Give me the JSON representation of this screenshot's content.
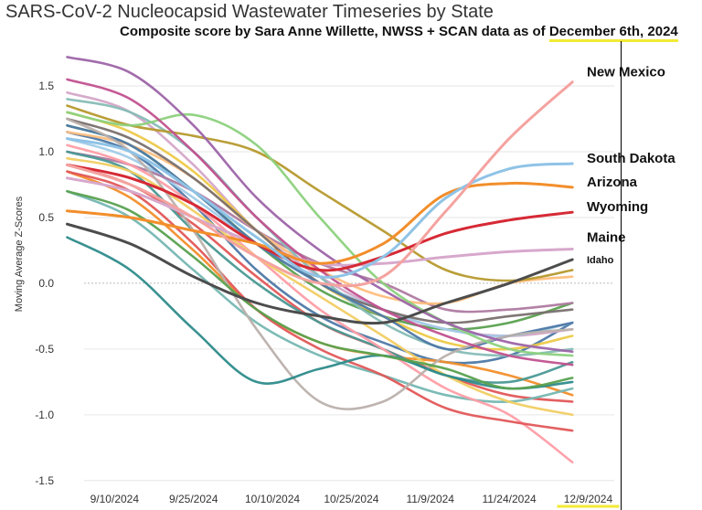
{
  "title": "SARS-CoV-2 Nucleocapsid Wastewater Timeseries by State",
  "subtitle_prefix": "Composite score by  Sara Anne Willette, NWSS + SCAN data as of ",
  "subtitle_date": "December 6th, 2024",
  "colors": {
    "highlight": "#f2ea36",
    "grid": "#e6e6e6"
  },
  "chart_data": {
    "type": "line",
    "ylabel": "Moving Average Z-Scores",
    "ylim": [
      -1.55,
      1.82
    ],
    "xlim": [
      "2024-08-30",
      "2024-12-15"
    ],
    "yticks": [
      {
        "value": 1.5,
        "label": "1.5"
      },
      {
        "value": 1.0,
        "label": "1.0"
      },
      {
        "value": 0.5,
        "label": "0.5"
      },
      {
        "value": 0.0,
        "label": "0.0"
      },
      {
        "value": -0.5,
        "label": "-0.5"
      },
      {
        "value": -1.0,
        "label": "-1.0"
      },
      {
        "value": -1.5,
        "label": "-1.5"
      }
    ],
    "xticks": [
      {
        "date": "2024-09-10",
        "label": "9/10/2024"
      },
      {
        "date": "2024-09-25",
        "label": "9/25/2024"
      },
      {
        "date": "2024-10-10",
        "label": "10/10/2024"
      },
      {
        "date": "2024-10-25",
        "label": "10/25/2024"
      },
      {
        "date": "2024-11-09",
        "label": "11/9/2024"
      },
      {
        "date": "2024-11-24",
        "label": "11/24/2024"
      },
      {
        "date": "2024-12-09",
        "label": "12/9/2024"
      }
    ],
    "x": [
      "2024-09-01",
      "2024-09-13",
      "2024-09-25",
      "2024-10-07",
      "2024-10-19",
      "2024-10-31",
      "2024-11-12",
      "2024-11-24",
      "2024-12-06"
    ],
    "series": [
      {
        "name": "New Mexico",
        "color": "#f4a3a0",
        "values": [
          0.9,
          0.75,
          0.5,
          0.2,
          0.0,
          0.05,
          0.55,
          1.1,
          1.53
        ]
      },
      {
        "name": "South Dakota",
        "color": "#8fc3e6",
        "values": [
          1.1,
          1.0,
          0.7,
          0.35,
          0.05,
          0.2,
          0.65,
          0.87,
          0.91
        ]
      },
      {
        "name": "Arizona",
        "color": "#f28e2b",
        "values": [
          0.55,
          0.5,
          0.4,
          0.3,
          0.15,
          0.3,
          0.68,
          0.76,
          0.73
        ]
      },
      {
        "name": "Wyoming",
        "color": "#d62a35",
        "values": [
          0.9,
          0.8,
          0.6,
          0.3,
          0.1,
          0.2,
          0.38,
          0.48,
          0.54
        ]
      },
      {
        "name": "Maine",
        "color": "#d7a8cc",
        "values": [
          0.8,
          0.7,
          0.5,
          0.3,
          0.15,
          0.15,
          0.2,
          0.24,
          0.26
        ]
      },
      {
        "name": "Idaho",
        "color": "#4c4c4c",
        "values": [
          0.45,
          0.3,
          0.05,
          -0.15,
          -0.25,
          -0.3,
          -0.15,
          0.0,
          0.18
        ]
      },
      {
        "name": "",
        "color": "#9d64a8",
        "values": [
          1.72,
          1.6,
          1.2,
          0.65,
          0.25,
          -0.05,
          -0.3,
          -0.45,
          -0.52
        ]
      },
      {
        "name": "",
        "color": "#c2518f",
        "values": [
          1.55,
          1.4,
          1.0,
          0.5,
          0.1,
          -0.2,
          -0.4,
          -0.55,
          -0.62
        ]
      },
      {
        "name": "",
        "color": "#8cd17d",
        "values": [
          1.3,
          1.2,
          1.28,
          1.05,
          0.5,
          0.0,
          -0.3,
          -0.5,
          -0.55
        ]
      },
      {
        "name": "",
        "color": "#b6992d",
        "values": [
          1.35,
          1.2,
          1.12,
          1.0,
          0.7,
          0.4,
          0.1,
          0.02,
          0.1
        ]
      },
      {
        "name": "",
        "color": "#59a14f",
        "values": [
          0.7,
          0.55,
          0.2,
          -0.2,
          -0.45,
          -0.55,
          -0.65,
          -0.8,
          -0.72
        ]
      },
      {
        "name": "",
        "color": "#2e8b8b",
        "values": [
          0.35,
          0.1,
          -0.35,
          -0.75,
          -0.65,
          -0.55,
          -0.7,
          -0.8,
          -0.75
        ]
      },
      {
        "name": "",
        "color": "#bab0ac",
        "values": [
          1.25,
          1.0,
          0.4,
          -0.35,
          -0.9,
          -0.9,
          -0.55,
          -0.4,
          -0.35
        ]
      },
      {
        "name": "",
        "color": "#e15759",
        "values": [
          0.85,
          0.7,
          0.3,
          -0.2,
          -0.5,
          -0.7,
          -0.95,
          -1.05,
          -1.12
        ]
      },
      {
        "name": "",
        "color": "#4e79a7",
        "values": [
          1.2,
          1.05,
          0.7,
          0.3,
          0.0,
          -0.25,
          -0.5,
          -0.4,
          -0.3
        ]
      },
      {
        "name": "",
        "color": "#f1ce63",
        "values": [
          0.95,
          0.85,
          0.55,
          0.2,
          -0.1,
          -0.4,
          -0.7,
          -0.9,
          -1.0
        ]
      },
      {
        "name": "",
        "color": "#ff9da7",
        "values": [
          1.05,
          0.9,
          0.6,
          0.2,
          -0.2,
          -0.5,
          -0.8,
          -1.0,
          -1.36
        ]
      },
      {
        "name": "",
        "color": "#499894",
        "values": [
          1.0,
          0.85,
          0.4,
          0.0,
          -0.3,
          -0.5,
          -0.7,
          -0.75,
          -0.6
        ]
      },
      {
        "name": "",
        "color": "#86bcb6",
        "values": [
          1.4,
          1.3,
          1.0,
          0.5,
          0.05,
          -0.3,
          -0.5,
          -0.55,
          -0.5
        ]
      },
      {
        "name": "",
        "color": "#79706e",
        "values": [
          1.25,
          1.1,
          0.8,
          0.4,
          0.0,
          -0.2,
          -0.3,
          -0.25,
          -0.2
        ]
      },
      {
        "name": "",
        "color": "#ffbe7d",
        "values": [
          1.15,
          1.05,
          0.8,
          0.4,
          0.1,
          -0.1,
          -0.15,
          0.0,
          0.05
        ]
      },
      {
        "name": "",
        "color": "#edc948",
        "values": [
          1.3,
          1.15,
          0.85,
          0.4,
          0.0,
          -0.25,
          -0.45,
          -0.5,
          -0.4
        ]
      },
      {
        "name": "",
        "color": "#af7aa1",
        "values": [
          1.0,
          0.9,
          0.7,
          0.4,
          0.15,
          0.0,
          -0.2,
          -0.2,
          -0.15
        ]
      },
      {
        "name": "",
        "color": "#76b7b2",
        "values": [
          0.7,
          0.5,
          0.1,
          -0.3,
          -0.55,
          -0.7,
          -0.85,
          -0.9,
          -0.8
        ]
      },
      {
        "name": "",
        "color": "#f28e2b",
        "values": [
          0.85,
          0.65,
          0.25,
          -0.2,
          -0.45,
          -0.55,
          -0.6,
          -0.7,
          -0.85
        ]
      },
      {
        "name": "",
        "color": "#a0cbe8",
        "values": [
          1.1,
          0.95,
          0.65,
          0.3,
          0.0,
          -0.2,
          -0.35,
          -0.4,
          -0.3
        ]
      },
      {
        "name": "",
        "color": "#d4a6c8",
        "values": [
          1.45,
          1.3,
          0.9,
          0.4,
          0.05,
          -0.2,
          -0.35,
          -0.4,
          -0.35
        ]
      },
      {
        "name": "",
        "color": "#59a14f",
        "values": [
          1.2,
          1.05,
          0.7,
          0.3,
          -0.05,
          -0.25,
          -0.35,
          -0.3,
          -0.15
        ]
      },
      {
        "name": "",
        "color": "#e15759",
        "values": [
          0.9,
          0.75,
          0.45,
          0.05,
          -0.3,
          -0.5,
          -0.7,
          -0.85,
          -0.9
        ]
      },
      {
        "name": "",
        "color": "#4e79a7",
        "values": [
          1.15,
          1.0,
          0.6,
          0.1,
          -0.25,
          -0.45,
          -0.6,
          -0.55,
          -0.3
        ]
      }
    ],
    "labels": [
      {
        "series": 0,
        "text": "New Mexico",
        "bold": true
      },
      {
        "series": 1,
        "text": "South Dakota",
        "bold": true
      },
      {
        "series": 2,
        "text": "Arizona",
        "bold": true
      },
      {
        "series": 3,
        "text": "Wyoming",
        "bold": true
      },
      {
        "series": 4,
        "text": "Maine",
        "bold": true
      },
      {
        "series": 5,
        "text": "Idaho",
        "bold": true
      }
    ]
  }
}
